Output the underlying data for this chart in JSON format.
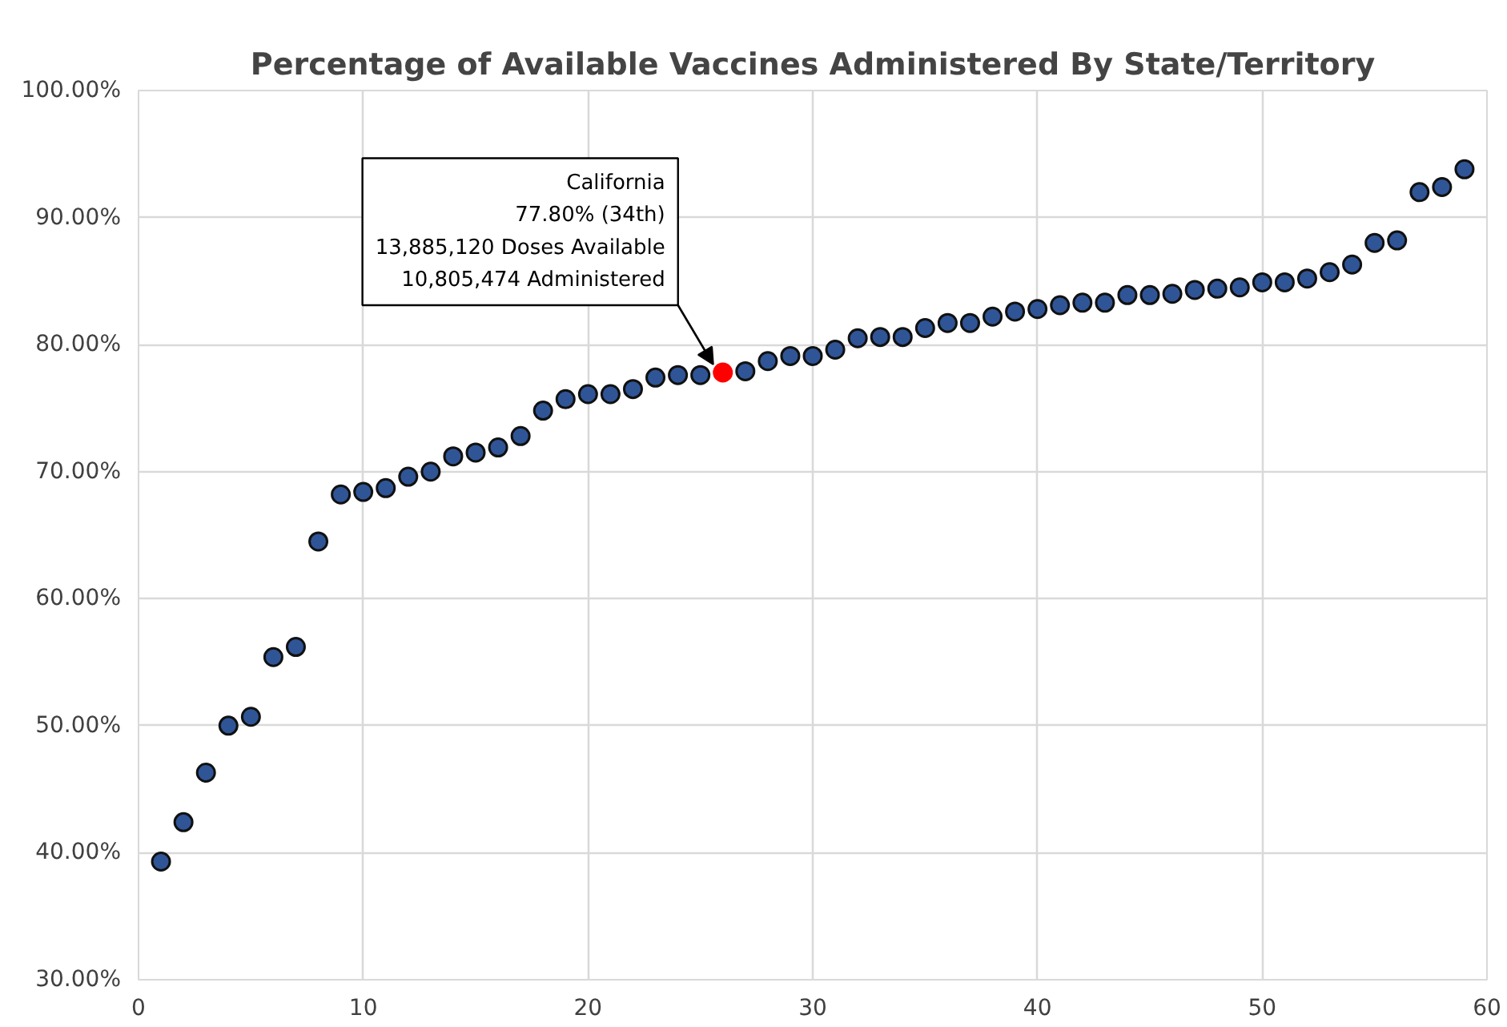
{
  "chart_data": {
    "type": "scatter",
    "title": "Percentage of Available Vaccines Administered By State/Territory",
    "x": [
      1,
      2,
      3,
      4,
      5,
      6,
      7,
      8,
      9,
      10,
      11,
      12,
      13,
      14,
      15,
      16,
      17,
      18,
      19,
      20,
      21,
      22,
      23,
      24,
      25,
      26,
      27,
      28,
      29,
      30,
      31,
      32,
      33,
      34,
      35,
      36,
      37,
      38,
      39,
      40,
      41,
      42,
      43,
      44,
      45,
      46,
      47,
      48,
      49,
      50,
      51,
      52,
      53,
      54,
      55,
      56,
      57,
      58,
      59
    ],
    "values": [
      39.3,
      42.4,
      46.3,
      50.0,
      50.7,
      55.4,
      56.2,
      64.5,
      68.2,
      68.4,
      68.7,
      69.6,
      70.0,
      71.2,
      71.5,
      71.9,
      72.8,
      74.8,
      75.7,
      76.1,
      76.1,
      76.5,
      77.4,
      77.6,
      77.6,
      77.8,
      77.9,
      78.7,
      79.1,
      79.1,
      79.6,
      80.5,
      80.6,
      80.6,
      81.3,
      81.7,
      81.7,
      82.2,
      82.6,
      82.8,
      83.1,
      83.3,
      83.3,
      83.9,
      83.9,
      84.0,
      84.3,
      84.4,
      84.5,
      84.9,
      84.9,
      85.2,
      85.7,
      86.3,
      88.0,
      88.2,
      92.0,
      92.4,
      93.8
    ],
    "colors": [
      "#2f5597",
      "#2f5597",
      "#2f5597",
      "#2f5597",
      "#2f5597",
      "#2f5597",
      "#2f5597",
      "#2f5597",
      "#2f5597",
      "#2f5597",
      "#2f5597",
      "#2f5597",
      "#2f5597",
      "#2f5597",
      "#2f5597",
      "#2f5597",
      "#2f5597",
      "#2f5597",
      "#2f5597",
      "#2f5597",
      "#2f5597",
      "#2f5597",
      "#2f5597",
      "#2f5597",
      "#2f5597",
      "#ff0000",
      "#2f5597",
      "#2f5597",
      "#2f5597",
      "#2f5597",
      "#2f5597",
      "#2f5597",
      "#2f5597",
      "#2f5597",
      "#2f5597",
      "#2f5597",
      "#2f5597",
      "#2f5597",
      "#2f5597",
      "#2f5597",
      "#2f5597",
      "#2f5597",
      "#2f5597",
      "#2f5597",
      "#2f5597",
      "#2f5597",
      "#2f5597",
      "#2f5597",
      "#2f5597",
      "#2f5597",
      "#2f5597",
      "#2f5597",
      "#2f5597",
      "#2f5597",
      "#2f5597",
      "#2f5597",
      "#2f5597",
      "#2f5597",
      "#2f5597"
    ],
    "xlim": [
      0,
      60
    ],
    "xticks": [
      0,
      10,
      20,
      30,
      40,
      50,
      60
    ],
    "ylim": [
      30,
      100
    ],
    "yticks": [
      {
        "value": 30,
        "label": "30.00%"
      },
      {
        "value": 40,
        "label": "40.00%"
      },
      {
        "value": 50,
        "label": "50.00%"
      },
      {
        "value": 60,
        "label": "60.00%"
      },
      {
        "value": 70,
        "label": "70.00%"
      },
      {
        "value": 80,
        "label": "80.00%"
      },
      {
        "value": 90,
        "label": "90.00%"
      },
      {
        "value": 100,
        "label": "100.00%"
      }
    ],
    "grid": true,
    "marker": "circle",
    "annotations": [
      {
        "text": "California\n77.80% (34th)\n13,885,120 Doses Available\n10,805,474 Administered",
        "x": 26,
        "y": 77.8
      }
    ]
  }
}
